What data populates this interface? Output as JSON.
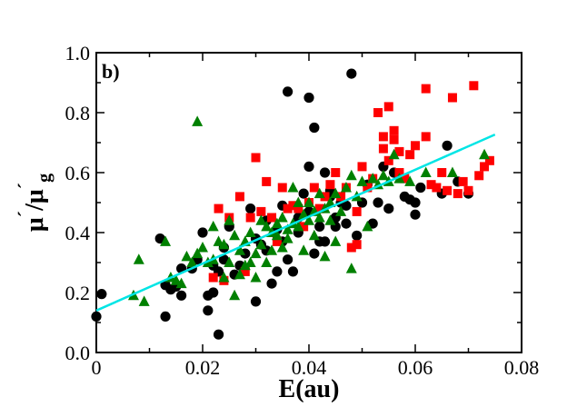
{
  "chart_data": {
    "type": "scatter",
    "panel_label": "b)",
    "xlabel": "E(au)",
    "ylabel": {
      "base": "μ",
      "sup": "´",
      "slash": "/μ",
      "sub": "g"
    },
    "xlim": [
      0,
      0.08
    ],
    "ylim": [
      0.0,
      1.0
    ],
    "x_ticks": [
      0,
      0.02,
      0.04,
      0.06,
      0.08
    ],
    "x_tick_labels": [
      "0",
      "0.02",
      "0.04",
      "0.06",
      "0.08"
    ],
    "y_ticks": [
      0.0,
      0.2,
      0.4,
      0.6,
      0.8,
      1.0
    ],
    "y_tick_labels": [
      "0.0",
      "0.2",
      "0.4",
      "0.6",
      "0.8",
      "1.0"
    ],
    "grid": false,
    "legend": "none",
    "colors": {
      "circles": "#000000",
      "squares": "#ff0000",
      "triangles": "#008000",
      "fit": "#00e5e5"
    },
    "series": [
      {
        "marker": "circle",
        "color": "#000000",
        "points": [
          [
            0.0,
            0.12
          ],
          [
            0.001,
            0.195
          ],
          [
            0.012,
            0.38
          ],
          [
            0.013,
            0.12
          ],
          [
            0.013,
            0.225
          ],
          [
            0.014,
            0.21
          ],
          [
            0.015,
            0.22
          ],
          [
            0.016,
            0.28
          ],
          [
            0.016,
            0.19
          ],
          [
            0.018,
            0.28
          ],
          [
            0.019,
            0.31
          ],
          [
            0.02,
            0.4
          ],
          [
            0.021,
            0.19
          ],
          [
            0.021,
            0.14
          ],
          [
            0.022,
            0.2
          ],
          [
            0.022,
            0.29
          ],
          [
            0.023,
            0.06
          ],
          [
            0.023,
            0.27
          ],
          [
            0.024,
            0.31
          ],
          [
            0.024,
            0.35
          ],
          [
            0.025,
            0.42
          ],
          [
            0.026,
            0.26
          ],
          [
            0.027,
            0.29
          ],
          [
            0.028,
            0.33
          ],
          [
            0.029,
            0.48
          ],
          [
            0.03,
            0.17
          ],
          [
            0.03,
            0.38
          ],
          [
            0.031,
            0.36
          ],
          [
            0.032,
            0.44
          ],
          [
            0.032,
            0.34
          ],
          [
            0.033,
            0.23
          ],
          [
            0.034,
            0.41
          ],
          [
            0.034,
            0.27
          ],
          [
            0.035,
            0.49
          ],
          [
            0.035,
            0.37
          ],
          [
            0.036,
            0.31
          ],
          [
            0.036,
            0.87
          ],
          [
            0.037,
            0.27
          ],
          [
            0.038,
            0.4
          ],
          [
            0.038,
            0.45
          ],
          [
            0.039,
            0.53
          ],
          [
            0.04,
            0.85
          ],
          [
            0.04,
            0.62
          ],
          [
            0.04,
            0.47
          ],
          [
            0.041,
            0.75
          ],
          [
            0.041,
            0.33
          ],
          [
            0.042,
            0.42
          ],
          [
            0.042,
            0.37
          ],
          [
            0.043,
            0.6
          ],
          [
            0.043,
            0.37
          ],
          [
            0.044,
            0.54
          ],
          [
            0.044,
            0.52
          ],
          [
            0.045,
            0.45
          ],
          [
            0.045,
            0.42
          ],
          [
            0.046,
            0.5
          ],
          [
            0.047,
            0.43
          ],
          [
            0.047,
            0.49
          ],
          [
            0.048,
            0.93
          ],
          [
            0.049,
            0.39
          ],
          [
            0.05,
            0.5
          ],
          [
            0.051,
            0.56
          ],
          [
            0.052,
            0.43
          ],
          [
            0.053,
            0.5
          ],
          [
            0.054,
            0.62
          ],
          [
            0.055,
            0.48
          ],
          [
            0.056,
            0.6
          ],
          [
            0.058,
            0.52
          ],
          [
            0.059,
            0.51
          ],
          [
            0.06,
            0.5
          ],
          [
            0.06,
            0.46
          ],
          [
            0.061,
            0.55
          ],
          [
            0.065,
            0.53
          ],
          [
            0.066,
            0.69
          ],
          [
            0.068,
            0.57
          ],
          [
            0.07,
            0.53
          ]
        ]
      },
      {
        "marker": "square",
        "color": "#ff0000",
        "points": [
          [
            0.022,
            0.25
          ],
          [
            0.023,
            0.48
          ],
          [
            0.024,
            0.24
          ],
          [
            0.025,
            0.45
          ],
          [
            0.027,
            0.52
          ],
          [
            0.028,
            0.27
          ],
          [
            0.029,
            0.45
          ],
          [
            0.03,
            0.65
          ],
          [
            0.031,
            0.47
          ],
          [
            0.032,
            0.57
          ],
          [
            0.033,
            0.45
          ],
          [
            0.034,
            0.37
          ],
          [
            0.035,
            0.55
          ],
          [
            0.036,
            0.48
          ],
          [
            0.037,
            0.49
          ],
          [
            0.038,
            0.48
          ],
          [
            0.039,
            0.42
          ],
          [
            0.04,
            0.5
          ],
          [
            0.041,
            0.55
          ],
          [
            0.042,
            0.48
          ],
          [
            0.043,
            0.52
          ],
          [
            0.044,
            0.56
          ],
          [
            0.045,
            0.6
          ],
          [
            0.046,
            0.52
          ],
          [
            0.047,
            0.55
          ],
          [
            0.048,
            0.35
          ],
          [
            0.049,
            0.36
          ],
          [
            0.049,
            0.47
          ],
          [
            0.05,
            0.62
          ],
          [
            0.051,
            0.55
          ],
          [
            0.052,
            0.58
          ],
          [
            0.053,
            0.8
          ],
          [
            0.054,
            0.68
          ],
          [
            0.054,
            0.72
          ],
          [
            0.055,
            0.82
          ],
          [
            0.055,
            0.64
          ],
          [
            0.056,
            0.71
          ],
          [
            0.056,
            0.74
          ],
          [
            0.057,
            0.67
          ],
          [
            0.057,
            0.6
          ],
          [
            0.058,
            0.58
          ],
          [
            0.059,
            0.66
          ],
          [
            0.06,
            0.69
          ],
          [
            0.062,
            0.72
          ],
          [
            0.062,
            0.88
          ],
          [
            0.063,
            0.56
          ],
          [
            0.064,
            0.55
          ],
          [
            0.065,
            0.6
          ],
          [
            0.066,
            0.54
          ],
          [
            0.067,
            0.85
          ],
          [
            0.068,
            0.53
          ],
          [
            0.069,
            0.57
          ],
          [
            0.07,
            0.54
          ],
          [
            0.071,
            0.89
          ],
          [
            0.072,
            0.59
          ],
          [
            0.073,
            0.62
          ],
          [
            0.074,
            0.64
          ]
        ]
      },
      {
        "marker": "triangle",
        "color": "#008000",
        "points": [
          [
            0.007,
            0.19
          ],
          [
            0.008,
            0.31
          ],
          [
            0.009,
            0.17
          ],
          [
            0.013,
            0.37
          ],
          [
            0.014,
            0.25
          ],
          [
            0.015,
            0.24
          ],
          [
            0.016,
            0.23
          ],
          [
            0.017,
            0.32
          ],
          [
            0.018,
            0.3
          ],
          [
            0.019,
            0.77
          ],
          [
            0.019,
            0.33
          ],
          [
            0.02,
            0.35
          ],
          [
            0.021,
            0.3
          ],
          [
            0.022,
            0.42
          ],
          [
            0.022,
            0.31
          ],
          [
            0.023,
            0.37
          ],
          [
            0.024,
            0.36
          ],
          [
            0.024,
            0.25
          ],
          [
            0.025,
            0.3
          ],
          [
            0.025,
            0.44
          ],
          [
            0.026,
            0.19
          ],
          [
            0.026,
            0.39
          ],
          [
            0.027,
            0.34
          ],
          [
            0.027,
            0.26
          ],
          [
            0.028,
            0.29
          ],
          [
            0.028,
            0.37
          ],
          [
            0.029,
            0.3
          ],
          [
            0.029,
            0.4
          ],
          [
            0.03,
            0.33
          ],
          [
            0.03,
            0.25
          ],
          [
            0.031,
            0.36
          ],
          [
            0.031,
            0.44
          ],
          [
            0.032,
            0.42
          ],
          [
            0.032,
            0.3
          ],
          [
            0.033,
            0.4
          ],
          [
            0.033,
            0.34
          ],
          [
            0.034,
            0.43
          ],
          [
            0.034,
            0.39
          ],
          [
            0.035,
            0.45
          ],
          [
            0.035,
            0.35
          ],
          [
            0.036,
            0.41
          ],
          [
            0.036,
            0.38
          ],
          [
            0.037,
            0.55
          ],
          [
            0.037,
            0.43
          ],
          [
            0.038,
            0.42
          ],
          [
            0.038,
            0.5
          ],
          [
            0.039,
            0.46
          ],
          [
            0.039,
            0.34
          ],
          [
            0.04,
            0.44
          ],
          [
            0.04,
            0.5
          ],
          [
            0.041,
            0.47
          ],
          [
            0.041,
            0.39
          ],
          [
            0.042,
            0.53
          ],
          [
            0.042,
            0.45
          ],
          [
            0.043,
            0.48
          ],
          [
            0.043,
            0.32
          ],
          [
            0.044,
            0.44
          ],
          [
            0.044,
            0.5
          ],
          [
            0.045,
            0.53
          ],
          [
            0.045,
            0.37
          ],
          [
            0.046,
            0.47
          ],
          [
            0.047,
            0.55
          ],
          [
            0.048,
            0.59
          ],
          [
            0.048,
            0.28
          ],
          [
            0.049,
            0.52
          ],
          [
            0.05,
            0.57
          ],
          [
            0.051,
            0.42
          ],
          [
            0.052,
            0.58
          ],
          [
            0.053,
            0.56
          ],
          [
            0.054,
            0.59
          ],
          [
            0.055,
            0.57
          ],
          [
            0.056,
            0.66
          ],
          [
            0.057,
            0.58
          ],
          [
            0.059,
            0.57
          ],
          [
            0.062,
            0.6
          ],
          [
            0.067,
            0.6
          ],
          [
            0.073,
            0.66
          ]
        ]
      }
    ],
    "fit_line": {
      "color": "#00e5e5",
      "x": [
        0.0,
        0.075
      ],
      "y": [
        0.14,
        0.727
      ]
    }
  }
}
